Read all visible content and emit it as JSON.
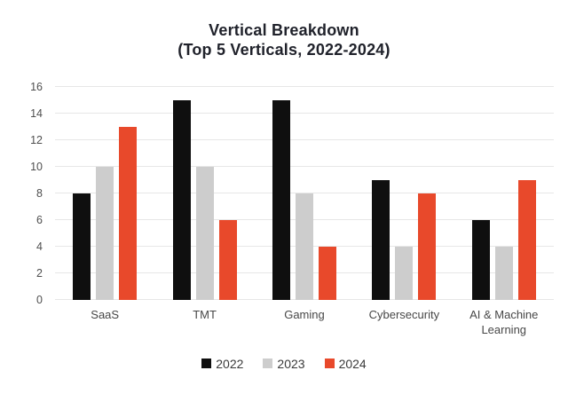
{
  "chart": {
    "title_line1": "Vertical Breakdown",
    "title_line2": "(Top 5 Verticals, 2022-2024)"
  },
  "chart_data": {
    "type": "bar",
    "title": "Vertical Breakdown (Top 5 Verticals, 2022-2024)",
    "categories": [
      "SaaS",
      "TMT",
      "Gaming",
      "Cybersecurity",
      "AI & Machine Learning"
    ],
    "series": [
      {
        "name": "2022",
        "color": "#0f0f0f",
        "values": [
          8,
          15,
          15,
          9,
          6
        ]
      },
      {
        "name": "2023",
        "color": "#cdcdcd",
        "values": [
          10,
          10,
          8,
          4,
          4
        ]
      },
      {
        "name": "2024",
        "color": "#e8492b",
        "values": [
          13,
          6,
          4,
          8,
          9
        ]
      }
    ],
    "xlabel": "",
    "ylabel": "",
    "ylim": [
      0,
      16
    ],
    "yticks": [
      0,
      2,
      4,
      6,
      8,
      10,
      12,
      14,
      16
    ],
    "grid": true,
    "legend_position": "bottom"
  },
  "colors": {
    "grid": "#e7e7e7",
    "axis_text": "#4f4f4f",
    "title_text": "#20222b",
    "legend_text": "#3a3a3a"
  }
}
